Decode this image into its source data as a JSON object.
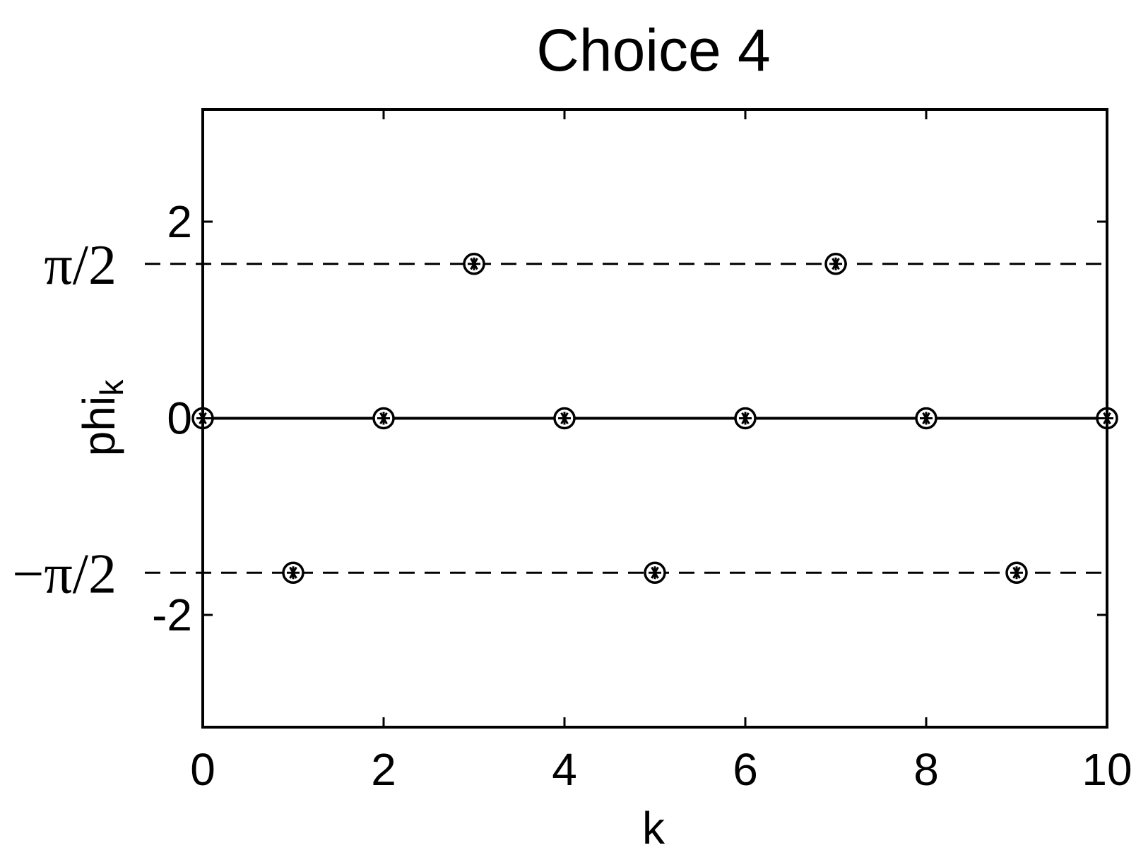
{
  "chart_data": {
    "type": "scatter",
    "title": "Choice 4",
    "xlabel": "k",
    "ylabel": "phi",
    "ylabel_subscript": "k",
    "xlim": [
      0,
      10
    ],
    "ylim": [
      -3.1416,
      3.1416
    ],
    "x_ticks": [
      0,
      2,
      4,
      6,
      8,
      10
    ],
    "x_tick_labels": [
      "0",
      "2",
      "4",
      "6",
      "8",
      "10"
    ],
    "y_ticks": [
      2,
      0,
      -2
    ],
    "y_tick_labels": [
      "2",
      "0",
      "-2"
    ],
    "reference_lines": [
      {
        "y": 1.5708,
        "label": "π/2",
        "style": "dashed"
      },
      {
        "y": 0,
        "label": "",
        "style": "solid"
      },
      {
        "y": -1.5708,
        "label": "−π/2",
        "style": "dashed"
      }
    ],
    "series": [
      {
        "marker": "circle-asterisk",
        "x": [
          0,
          1,
          2,
          3,
          4,
          5,
          6,
          7,
          8,
          9,
          10
        ],
        "y": [
          0,
          -1.5708,
          0,
          1.5708,
          0,
          -1.5708,
          0,
          1.5708,
          0,
          -1.5708,
          0
        ]
      }
    ],
    "grid": false
  },
  "colors": {
    "ink": "#000000",
    "background": "#ffffff"
  }
}
